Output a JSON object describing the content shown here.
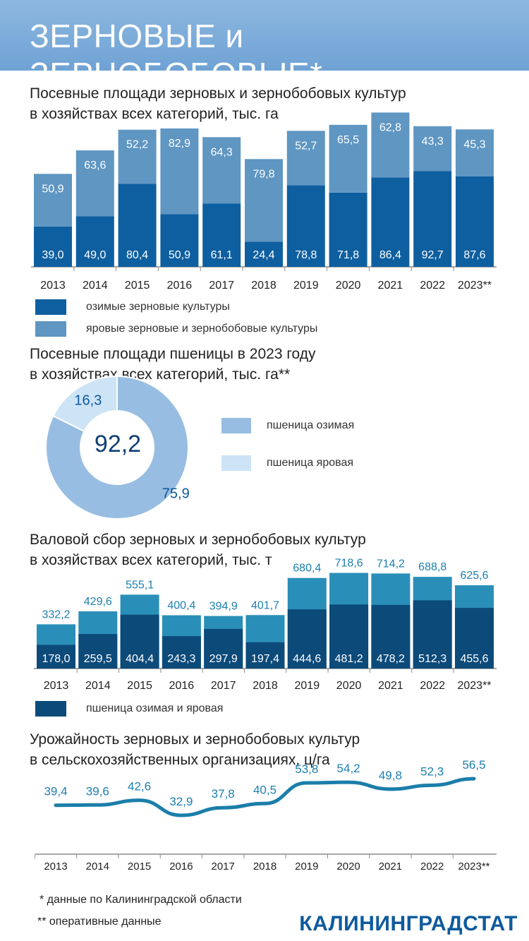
{
  "header": {
    "title": "ЗЕРНОВЫЕ и ЗЕРНОБОБОВЫЕ*"
  },
  "colors": {
    "winter": "#0e5fa0",
    "spring": "#5f96c2",
    "wheat_winter": "#97bde2",
    "wheat_spring": "#cde3f6",
    "harvest_dark": "#0c4a7a",
    "harvest_light": "#2a8fb8",
    "yield_line": "#1b7ea9",
    "value_text": "#1c7fb0"
  },
  "chart_data": [
    {
      "type": "bar",
      "title": "Посевные площади зерновых и зернобобовых культур в хозяйствах всех категорий, тыс. га",
      "title_lines": [
        "Посевные площади зерновых и зернобобовых культур",
        "в хозяйствах всех категорий, тыс. га"
      ],
      "stacked": true,
      "categories": [
        "2013",
        "2014",
        "2015",
        "2016",
        "2017",
        "2018",
        "2019",
        "2020",
        "2021",
        "2022",
        "2023**"
      ],
      "series": [
        {
          "name": "озимые зерновые культуры",
          "values": [
            39.0,
            49.0,
            80.4,
            50.9,
            61.1,
            24.4,
            78.8,
            71.8,
            86.4,
            92.7,
            87.6
          ],
          "labels": [
            "39,0",
            "49,0",
            "80,4",
            "50,9",
            "61,1",
            "24,4",
            "78,8",
            "71,8",
            "86,4",
            "92,7",
            "87,6"
          ]
        },
        {
          "name": "яровые зерновые и зернобобовые культуры",
          "values": [
            50.9,
            63.6,
            52.2,
            82.9,
            64.3,
            79.8,
            52.7,
            65.5,
            62.8,
            43.3,
            45.3
          ],
          "labels": [
            "50,9",
            "63,6",
            "52,2",
            "82,9",
            "64,3",
            "79,8",
            "52,7",
            "65,5",
            "62,8",
            "43,3",
            "45,3"
          ]
        }
      ],
      "legend": "bottom-left"
    },
    {
      "type": "pie",
      "title": "Посевные площади пшеницы в 2023 году в хозяйствах всех категорий, тыс. га**",
      "title_lines": [
        "Посевные площади пшеницы в 2023 году",
        "в хозяйствах всех категорий, тыс. га**"
      ],
      "center_label": "92,2",
      "total": 92.2,
      "slices": [
        {
          "name": "пшеница озимая",
          "value": 75.9,
          "label": "75,9"
        },
        {
          "name": "пшеница яровая",
          "value": 16.3,
          "label": "16,3"
        }
      ],
      "legend": "right"
    },
    {
      "type": "bar",
      "title": "Валовой сбор зерновых и зернобобовых культур в хозяйствах всех категорий, тыс. т",
      "title_lines": [
        "Валовой сбор зерновых и зернобобовых культур",
        "в хозяйствах всех категорий, тыс. т"
      ],
      "overlay": true,
      "categories": [
        "2013",
        "2014",
        "2015",
        "2016",
        "2017",
        "2018",
        "2019",
        "2020",
        "2021",
        "2022",
        "2023**"
      ],
      "series": [
        {
          "name": "total",
          "values": [
            332.2,
            429.6,
            555.1,
            400.4,
            394.9,
            401.7,
            680.4,
            718.6,
            714.2,
            688.8,
            625.6
          ],
          "labels": [
            "332,2",
            "429,6",
            "555,1",
            "400,4",
            "394,9",
            "401,7",
            "680,4",
            "718,6",
            "714,2",
            "688,8",
            "625,6"
          ]
        },
        {
          "name": "пшеница озимая и яровая",
          "values": [
            178.0,
            259.5,
            404.4,
            243.3,
            297.9,
            197.4,
            444.6,
            481.2,
            478.2,
            512.3,
            455.6
          ],
          "labels": [
            "178,0",
            "259,5",
            "404,4",
            "243,3",
            "297,9",
            "197,4",
            "444,6",
            "481,2",
            "478,2",
            "512,3",
            "455,6"
          ]
        }
      ],
      "legend": "bottom-left"
    },
    {
      "type": "line",
      "title": "Урожайность зерновых и зернобобовых культур в сельскохозяйственных организациях, ц/га",
      "title_lines": [
        "Урожайность зерновых и зернобобовых культур",
        "в сельскохозяйственных организациях, ц/га"
      ],
      "categories": [
        "2013",
        "2014",
        "2015",
        "2016",
        "2017",
        "2018",
        "2019",
        "2020",
        "2021",
        "2022",
        "2023**"
      ],
      "values": [
        39.4,
        39.6,
        42.6,
        32.9,
        37.8,
        40.5,
        53.8,
        54.2,
        49.8,
        52.3,
        56.5
      ],
      "labels": [
        "39,4",
        "39,6",
        "42,6",
        "32,9",
        "37,8",
        "40,5",
        "53,8",
        "54,2",
        "49,8",
        "52,3",
        "56,5"
      ]
    }
  ],
  "footnotes": {
    "note1": "* данные по Калининградской области",
    "note2": "** оперативные данные"
  },
  "brand": "КАЛИНИНГРАДСТАТ"
}
